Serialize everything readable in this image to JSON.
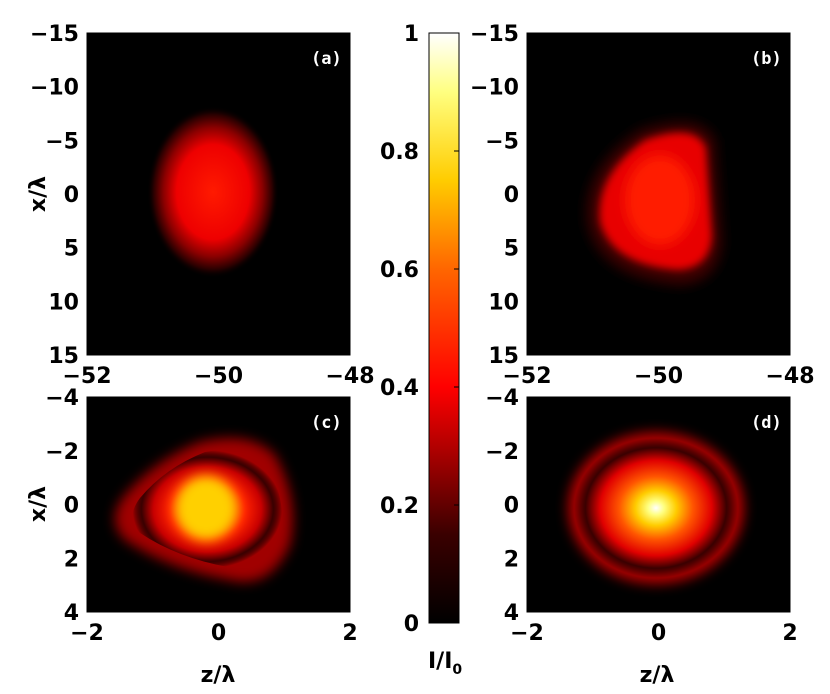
{
  "chart_data": [
    {
      "type": "heatmap",
      "panel": "(a)",
      "xlabel": "",
      "ylabel": "x/λ",
      "xlim": [
        -52,
        -48
      ],
      "ylim": [
        -15,
        15
      ],
      "xticks": [
        "−52",
        "−50",
        "−48"
      ],
      "yticks": [
        "−15",
        "−10",
        "−5",
        "0",
        "5",
        "10",
        "15"
      ],
      "spot": {
        "center_x": -49.9,
        "center_y": 0,
        "width_x": 0.75,
        "width_y": 5.5,
        "peak": 0.4
      }
    },
    {
      "type": "heatmap",
      "panel": "(b)",
      "xlabel": "",
      "ylabel": "",
      "xlim": [
        -52,
        -48
      ],
      "ylim": [
        -15,
        15
      ],
      "xticks": [
        "−52",
        "−50",
        "−48"
      ],
      "yticks": [
        "−15",
        "−10",
        "−5",
        "0",
        "5",
        "10",
        "15"
      ],
      "spot": {
        "center_x": -49.7,
        "center_y": 0,
        "width_x": 0.8,
        "width_y": 5.2,
        "peak": 0.4
      }
    },
    {
      "type": "heatmap",
      "panel": "(c)",
      "xlabel": "z/λ",
      "ylabel": "x/λ",
      "xlim": [
        -2,
        2
      ],
      "ylim": [
        -4,
        4
      ],
      "xticks": [
        "−2",
        "0",
        "2"
      ],
      "yticks": [
        "−4",
        "−2",
        "0",
        "2",
        "4"
      ],
      "spot": {
        "center_x": -0.25,
        "center_y": 0,
        "width_x": 0.9,
        "width_y": 1.8,
        "peak": 0.82
      }
    },
    {
      "type": "heatmap",
      "panel": "(d)",
      "xlabel": "z/λ",
      "ylabel": "",
      "xlim": [
        -2,
        2
      ],
      "ylim": [
        -4,
        4
      ],
      "xticks": [
        "−2",
        "0",
        "2"
      ],
      "yticks": [
        "−4",
        "−2",
        "0",
        "2",
        "4"
      ],
      "spot": {
        "center_x": 0,
        "center_y": 0,
        "width_x": 0.75,
        "width_y": 1.6,
        "peak": 1.0
      }
    }
  ],
  "colorbar": {
    "range": [
      0,
      1
    ],
    "ticks": [
      "0",
      "0.2",
      "0.4",
      "0.6",
      "0.8",
      "1"
    ],
    "label_main": "I/I",
    "label_sub": "0",
    "colormap": "hot"
  },
  "colors": {
    "background": "#000000",
    "low": "#1a0000",
    "mid": "#e00000",
    "high": "#ffff80",
    "max": "#ffffff"
  }
}
